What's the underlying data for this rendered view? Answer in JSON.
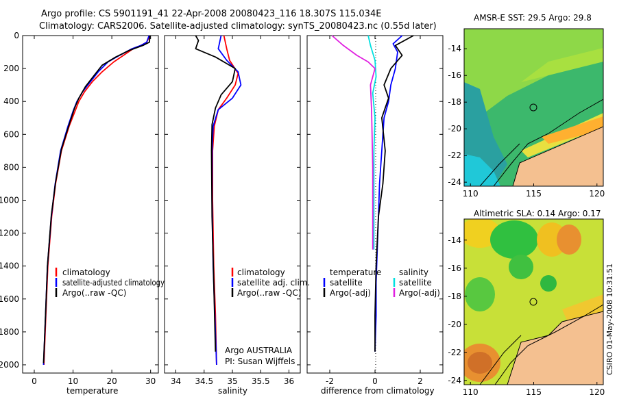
{
  "header": {
    "line1": "Argo profile: CS 5901191_41 22-Apr-2008 20080423_116 18.307S 115.034E",
    "line2": "Climatology: CARS2006. Satellite-adjusted climatology: synTS_20080423.nc (0.55d later)"
  },
  "side_label": "CSIRO 01-May-2008 10:31:51",
  "colors": {
    "climatology": "#ff0000",
    "satellite": "#0000ff",
    "argo": "#000000",
    "sat_salinity": "#00e0e0",
    "argo_adj_salinity": "#e020e0",
    "land": "#f4c090"
  },
  "chart_data": [
    {
      "type": "line",
      "xlabel": "temperature",
      "ylabel": "",
      "xlim": [
        -3,
        32
      ],
      "ylim": [
        2050,
        0
      ],
      "xticks": [
        "0",
        "10",
        "20",
        "30"
      ],
      "yticks": [
        "0",
        "200",
        "400",
        "600",
        "800",
        "1000",
        "1200",
        "1400",
        "1600",
        "1800",
        "2000"
      ],
      "legend": [
        "climatology",
        "satellite-adjusted climatology",
        "Argo(..raw -QC)"
      ],
      "series": [
        {
          "name": "climatology",
          "color": "#ff0000",
          "x": [
            29.8,
            29.0,
            27.5,
            25.5,
            23.0,
            20.5,
            17.5,
            15.0,
            13.0,
            11.5,
            10.5,
            9.0,
            7.0,
            5.5,
            4.5,
            3.5,
            3.0,
            2.5
          ],
          "y": [
            0,
            40,
            60,
            80,
            120,
            160,
            220,
            280,
            340,
            400,
            460,
            550,
            700,
            900,
            1100,
            1400,
            1700,
            2000
          ]
        },
        {
          "name": "satellite-adjusted climatology",
          "color": "#0000ff",
          "x": [
            29.6,
            29.0,
            27.5,
            25.2,
            22.0,
            19.0,
            16.5,
            14.5,
            12.5,
            11.0,
            10.0,
            8.7,
            6.8,
            5.4,
            4.4,
            3.4,
            2.9,
            2.4
          ],
          "y": [
            0,
            40,
            60,
            80,
            120,
            160,
            220,
            280,
            340,
            400,
            460,
            550,
            700,
            900,
            1100,
            1400,
            1700,
            2000
          ]
        },
        {
          "name": "Argo(..raw -QC)",
          "color": "#000000",
          "x": [
            29.8,
            29.7,
            28.0,
            24.5,
            21.0,
            17.5,
            15.5,
            13.2,
            11.5,
            10.4,
            9.0,
            7.0,
            5.5,
            4.4,
            3.4,
            2.9,
            2.4
          ],
          "y": [
            0,
            40,
            60,
            90,
            130,
            180,
            240,
            310,
            380,
            440,
            540,
            690,
            890,
            1090,
            1400,
            1700,
            1990
          ]
        }
      ]
    },
    {
      "type": "line",
      "xlabel": "salinity",
      "ylabel": "",
      "xlim": [
        33.8,
        36.2
      ],
      "ylim": [
        2050,
        0
      ],
      "xticks": [
        "34",
        "34.5",
        "35",
        "35.5",
        "36"
      ],
      "legend": [
        "climatology",
        "satellite adj. clim.",
        "Argo(..raw -QC)"
      ],
      "annotation": [
        "Argo AUSTRALIA",
        "PI: Susan Wijffels"
      ],
      "series": [
        {
          "name": "climatology",
          "color": "#ff0000",
          "x": [
            34.85,
            34.9,
            34.95,
            35.1,
            35.05,
            34.9,
            34.75,
            34.68,
            34.65,
            34.65,
            34.67,
            34.7,
            34.72
          ],
          "y": [
            0,
            80,
            150,
            230,
            300,
            380,
            450,
            550,
            700,
            1000,
            1400,
            1700,
            2000
          ]
        },
        {
          "name": "satellite adj. clim.",
          "color": "#0000ff",
          "x": [
            34.8,
            34.75,
            34.9,
            35.1,
            35.15,
            35.0,
            34.75,
            34.66,
            34.64,
            34.64,
            34.66,
            34.69,
            34.72
          ],
          "y": [
            0,
            80,
            150,
            220,
            300,
            380,
            450,
            550,
            700,
            1000,
            1400,
            1700,
            2000
          ]
        },
        {
          "name": "Argo(..raw -QC)",
          "color": "#000000",
          "x": [
            34.35,
            34.4,
            34.35,
            34.7,
            35.05,
            35.0,
            34.8,
            34.7,
            34.64,
            34.63,
            34.64,
            34.67,
            34.7
          ],
          "y": [
            0,
            30,
            80,
            130,
            200,
            280,
            360,
            440,
            540,
            700,
            1100,
            1500,
            1920
          ]
        }
      ]
    },
    {
      "type": "line",
      "xlabel": "difference from climatology",
      "ylabel": "",
      "xlim": [
        -3,
        3
      ],
      "ylim": [
        2050,
        0
      ],
      "xticks": [
        "-2",
        "0",
        "2"
      ],
      "legend_groups": [
        {
          "title": "temperature",
          "entries": [
            "satellite",
            "Argo(-adj)"
          ]
        },
        {
          "title": "salinity",
          "entries": [
            "satellite",
            "Argo(-adj)"
          ]
        }
      ],
      "series": [
        {
          "name": "temperature satellite",
          "color": "#0000ff",
          "x": [
            1.2,
            0.8,
            1.0,
            0.9,
            0.7,
            0.6,
            0.4,
            0.3,
            0.2,
            0.15,
            0.1,
            0.05,
            0.05,
            0.0
          ],
          "y": [
            0,
            50,
            100,
            200,
            300,
            400,
            500,
            700,
            900,
            1100,
            1300,
            1500,
            1700,
            1920
          ]
        },
        {
          "name": "temperature Argo(-adj)",
          "color": "#000000",
          "x": [
            1.7,
            0.9,
            1.2,
            0.7,
            0.4,
            0.6,
            0.3,
            0.45,
            0.35,
            0.15,
            0.05,
            0.0,
            0.0
          ],
          "y": [
            0,
            60,
            120,
            200,
            300,
            380,
            500,
            700,
            900,
            1100,
            1400,
            1700,
            1920
          ]
        },
        {
          "name": "salinity satellite",
          "color": "#00e0e0",
          "x": [
            -0.3,
            -0.2,
            0.0,
            0.05,
            -0.1,
            0.0,
            -0.05,
            -0.05,
            -0.05
          ],
          "y": [
            0,
            60,
            150,
            250,
            350,
            500,
            700,
            1000,
            1300
          ]
        },
        {
          "name": "salinity Argo(-adj)",
          "color": "#e020e0",
          "x": [
            -1.9,
            -1.4,
            -0.8,
            -0.3,
            0.0,
            -0.2,
            -0.15,
            -0.1,
            -0.1
          ],
          "y": [
            0,
            60,
            120,
            160,
            200,
            300,
            450,
            800,
            1300
          ]
        }
      ]
    },
    {
      "type": "heatmap",
      "title": "AMSR-E SST: 29.5 Argo: 29.8",
      "xticks": [
        "110",
        "115",
        "120"
      ],
      "yticks": [
        "-14",
        "-16",
        "-18",
        "-20",
        "-22",
        "-24"
      ],
      "xlim": [
        109.5,
        120.5
      ],
      "ylim": [
        -24.3,
        -12.5
      ],
      "marker": {
        "lon": 115.03,
        "lat": -18.31
      }
    },
    {
      "type": "heatmap",
      "title": "Altimetric SLA: 0.14 Argo: 0.17",
      "xticks": [
        "110",
        "115",
        "120"
      ],
      "yticks": [
        "-14",
        "-16",
        "-18",
        "-20",
        "-22",
        "-24"
      ],
      "xlim": [
        109.5,
        120.5
      ],
      "ylim": [
        -24.3,
        -12.5
      ],
      "marker": {
        "lon": 115.03,
        "lat": -18.31
      }
    }
  ]
}
